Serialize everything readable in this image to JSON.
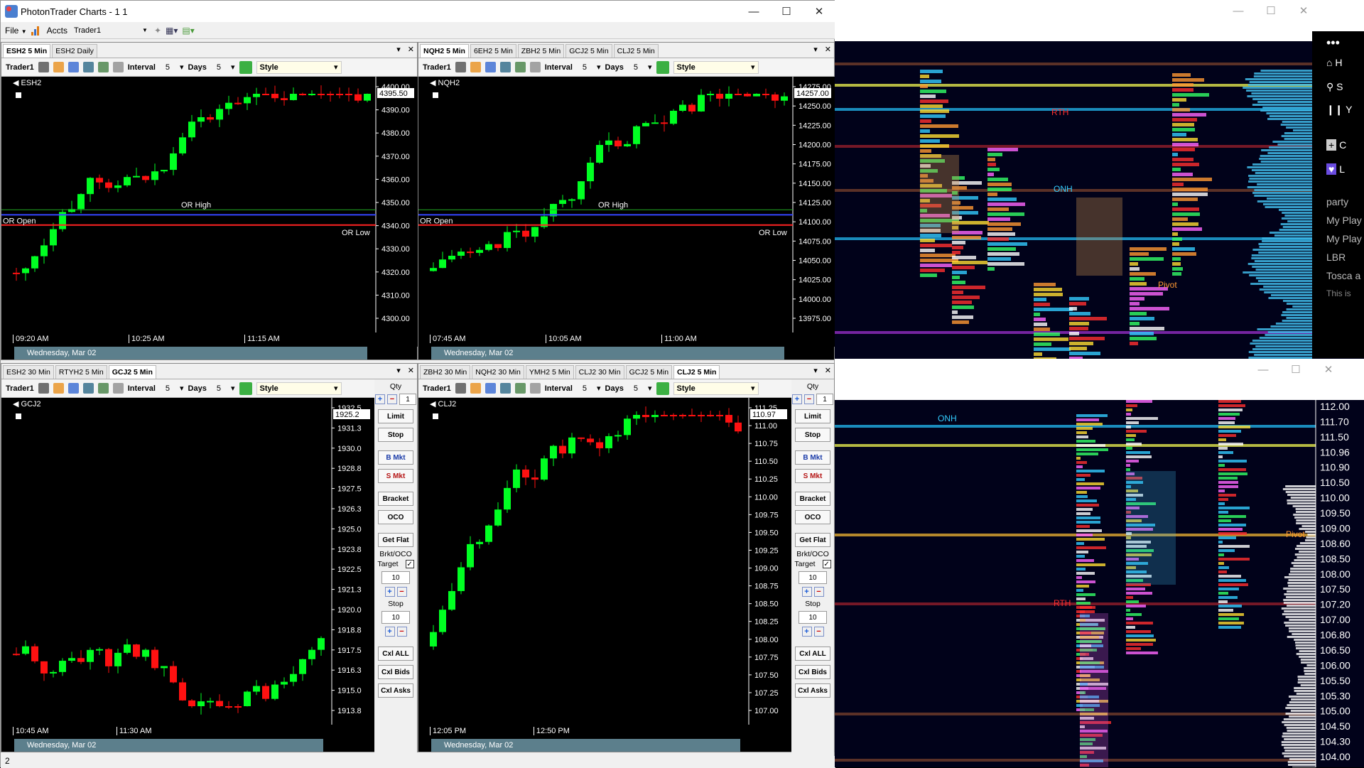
{
  "app": {
    "title": "PhotonTrader Charts - 1 1",
    "menu_file": "File",
    "menu_accts": "Accts",
    "account": "Trader1"
  },
  "panels": [
    {
      "id": "tl",
      "tabs": [
        "ESH2 5 Min",
        "ESH2 Daily"
      ],
      "active_tab": 0,
      "account": "Trader1",
      "interval_label": "Interval",
      "interval": "5",
      "days_label": "Days",
      "days": "5",
      "style_label": "Style",
      "symbol": "ESH2",
      "price_labels": [
        "4400.00",
        "4390.00",
        "4380.00",
        "4370.00",
        "4360.00",
        "4350.00",
        "4340.00",
        "4330.00",
        "4320.00",
        "4310.00",
        "4300.00"
      ],
      "last_price": "4395.50",
      "time_labels": [
        "09:20 AM",
        "10:25 AM",
        "11:15 AM"
      ],
      "date": "Wednesday, Mar 02",
      "annotations": [
        "OR High",
        "OR Open",
        "OR Low"
      ]
    },
    {
      "id": "tr",
      "tabs": [
        "NQH2 5 Min",
        "6EH2 5 Min",
        "ZBH2 5 Min",
        "GCJ2 5 Min",
        "CLJ2 5 Min"
      ],
      "active_tab": 0,
      "account": "Trader1",
      "interval_label": "Interval",
      "interval": "5",
      "days_label": "Days",
      "days": "5",
      "style_label": "Style",
      "symbol": "NQH2",
      "price_labels": [
        "14275.00",
        "14250.00",
        "14225.00",
        "14200.00",
        "14175.00",
        "14150.00",
        "14125.00",
        "14100.00",
        "14075.00",
        "14050.00",
        "14025.00",
        "14000.00",
        "13975.00"
      ],
      "last_price": "14257.00",
      "time_labels": [
        "07:45 AM",
        "10:05 AM",
        "11:00 AM"
      ],
      "date": "Wednesday, Mar 02",
      "annotations": [
        "OR High",
        "OR Open",
        "OR Low"
      ]
    },
    {
      "id": "bl",
      "tabs": [
        "ESH2 30 Min",
        "RTYH2 5 Min",
        "GCJ2 5 Min"
      ],
      "active_tab": 2,
      "account": "Trader1",
      "interval_label": "Interval",
      "interval": "5",
      "days_label": "Days",
      "days": "5",
      "style_label": "Style",
      "symbol": "GCJ2",
      "price_labels": [
        "1932.5",
        "1931.3",
        "1930.0",
        "1928.8",
        "1927.5",
        "1926.3",
        "1925.0",
        "1923.8",
        "1922.5",
        "1921.3",
        "1920.0",
        "1918.8",
        "1917.5",
        "1916.3",
        "1915.0",
        "1913.8"
      ],
      "last_price": "1925.2",
      "time_labels": [
        "10:45 AM",
        "11:30 AM"
      ],
      "date": "Wednesday, Mar 02"
    },
    {
      "id": "br",
      "tabs": [
        "ZBH2 30 Min",
        "NQH2 30 Min",
        "YMH2 5 Min",
        "CLJ2 30 Min",
        "GCJ2 5 Min",
        "CLJ2 5 Min"
      ],
      "active_tab": 5,
      "account": "Trader1",
      "interval_label": "Interval",
      "interval": "5",
      "days_label": "Days",
      "days": "5",
      "style_label": "Style",
      "symbol": "CLJ2",
      "price_labels": [
        "111.25",
        "111.00",
        "110.75",
        "110.50",
        "110.25",
        "110.00",
        "109.75",
        "109.50",
        "109.25",
        "109.00",
        "108.75",
        "108.50",
        "108.25",
        "108.00",
        "107.75",
        "107.50",
        "107.25",
        "107.00"
      ],
      "last_price": "110.97",
      "time_labels": [
        "12:05 PM",
        "12:50 PM"
      ],
      "date": "Wednesday, Mar 02"
    }
  ],
  "order_panel": {
    "qty_label": "Qty",
    "qty": "1",
    "buttons": [
      "Limit",
      "Stop",
      "B Mkt",
      "S Mkt",
      "Bracket",
      "OCO",
      "Get Flat"
    ],
    "brkt_label": "Brkt/OCO",
    "target_label": "Target",
    "target_value": "10",
    "stop_label": "Stop",
    "stop_value": "10",
    "cancel_buttons": [
      "Cxl ALL",
      "Cxl Bids",
      "Cxl Asks"
    ]
  },
  "right_top": {
    "labels": [
      "RTH",
      "ONH",
      "Pivot"
    ]
  },
  "right_bottom": {
    "labels": [
      "ONH",
      "RTH",
      "Pivot"
    ],
    "price_labels": [
      "112.00",
      "111.70",
      "111.50",
      "110.96",
      "110.90",
      "110.50",
      "110.00",
      "109.50",
      "109.00",
      "108.60",
      "108.50",
      "108.00",
      "107.50",
      "107.20",
      "107.00",
      "106.80",
      "106.50",
      "106.00",
      "105.50",
      "105.30",
      "105.00",
      "104.50",
      "104.30",
      "104.00"
    ]
  },
  "spotify": {
    "items": [
      "H",
      "S",
      "Y",
      "C",
      "L",
      "party",
      "My Play",
      "My Play",
      "LBR",
      "Tosca a",
      "This is"
    ]
  },
  "status_bar": "2",
  "colors": {
    "bull": "#00ff22",
    "bear": "#ff1111",
    "or_high": "#22aa22",
    "or_open": "#3344ff",
    "or_low": "#ff2222"
  }
}
